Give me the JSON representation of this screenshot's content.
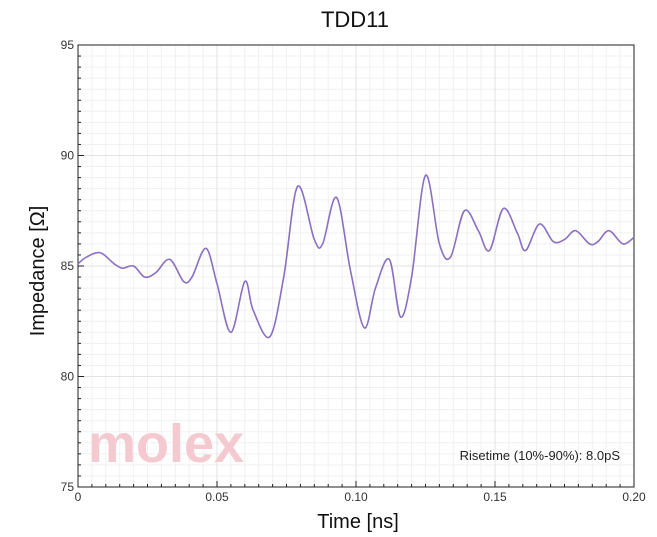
{
  "chart_data": {
    "type": "line",
    "title": "TDD11",
    "xlabel": "Time [ns]",
    "ylabel": "Impedance [Ω]",
    "xlim": [
      0,
      0.2
    ],
    "ylim": [
      75,
      95
    ],
    "x_ticks": [
      0,
      0.05,
      0.1,
      0.15,
      0.2
    ],
    "x_tick_labels": [
      "0",
      "0.05",
      "0.10",
      "0.15",
      "0.20"
    ],
    "y_ticks": [
      75,
      80,
      85,
      90,
      95
    ],
    "y_tick_labels": [
      "75",
      "80",
      "85",
      "90",
      "95"
    ],
    "grid": true,
    "series": [
      {
        "color": "#8b6fc2",
        "x": [
          0,
          0.003,
          0.008,
          0.013,
          0.016,
          0.02,
          0.024,
          0.028,
          0.033,
          0.038,
          0.041,
          0.046,
          0.05,
          0.055,
          0.06,
          0.063,
          0.069,
          0.074,
          0.079,
          0.085,
          0.088,
          0.093,
          0.098,
          0.103,
          0.107,
          0.112,
          0.116,
          0.12,
          0.125,
          0.13,
          0.134,
          0.139,
          0.144,
          0.148,
          0.153,
          0.158,
          0.161,
          0.166,
          0.171,
          0.175,
          0.179,
          0.184,
          0.187,
          0.191,
          0.196,
          0.2
        ],
        "y": [
          85.1,
          85.4,
          85.6,
          85.1,
          84.9,
          85.0,
          84.5,
          84.7,
          85.3,
          84.3,
          84.5,
          85.8,
          84.2,
          82.0,
          84.3,
          83.0,
          81.8,
          84.5,
          88.6,
          86.2,
          86.0,
          88.1,
          84.8,
          82.2,
          84.0,
          85.3,
          82.7,
          84.5,
          89.1,
          86.0,
          85.4,
          87.5,
          86.6,
          85.7,
          87.6,
          86.5,
          85.7,
          86.9,
          86.1,
          86.2,
          86.6,
          86.0,
          86.1,
          86.6,
          86.0,
          86.3
        ]
      }
    ],
    "annotation": "Risetime (10%-90%): 8.0pS",
    "watermark": "molex",
    "colors": {
      "background": "#ffffff",
      "grid": "#e3e3e3",
      "axis": "#222222",
      "watermark": "#f4c9cf"
    }
  }
}
